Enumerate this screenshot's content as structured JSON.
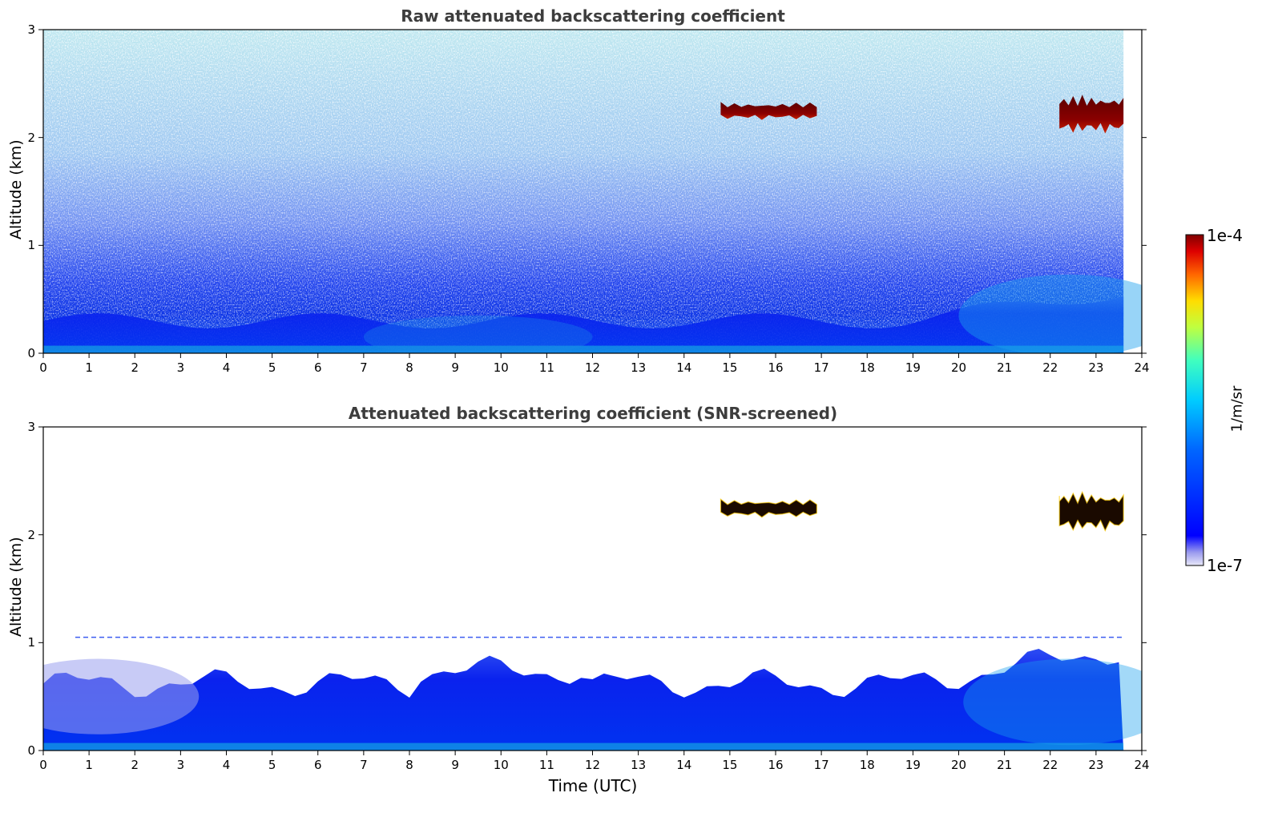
{
  "chart_data": [
    {
      "type": "heatmap",
      "title": "Raw attenuated backscattering coefficient",
      "xlabel": "",
      "ylabel": "Altitude (km)",
      "xlim": [
        0,
        24
      ],
      "ylim": [
        0,
        3
      ],
      "xticks": [
        "0",
        "1",
        "2",
        "3",
        "4",
        "5",
        "6",
        "7",
        "8",
        "9",
        "10",
        "11",
        "12",
        "13",
        "14",
        "15",
        "16",
        "17",
        "18",
        "19",
        "20",
        "21",
        "22",
        "23",
        "24"
      ],
      "yticks": [
        "0",
        "1",
        "2",
        "3"
      ],
      "data_end_time": 23.6,
      "features": [
        {
          "name": "boundary layer aerosol",
          "time_range": [
            0,
            23.6
          ],
          "altitude_top_km": 0.8
        },
        {
          "name": "cloud",
          "time_range": [
            14.8,
            16.9
          ],
          "altitude_range_km": [
            2.15,
            2.35
          ]
        },
        {
          "name": "cloud",
          "time_range": [
            22.2,
            23.6
          ],
          "altitude_range_km": [
            2.0,
            2.45
          ]
        }
      ]
    },
    {
      "type": "heatmap",
      "title": "Attenuated backscattering coefficient (SNR-screened)",
      "xlabel": "Time (UTC)",
      "ylabel": "Altitude (km)",
      "xlim": [
        0,
        24
      ],
      "ylim": [
        0,
        3
      ],
      "xticks": [
        "0",
        "1",
        "2",
        "3",
        "4",
        "5",
        "6",
        "7",
        "8",
        "9",
        "10",
        "11",
        "12",
        "13",
        "14",
        "15",
        "16",
        "17",
        "18",
        "19",
        "20",
        "21",
        "22",
        "23",
        "24"
      ],
      "yticks": [
        "0",
        "1",
        "2",
        "3"
      ],
      "data_end_time": 23.6,
      "features": [
        {
          "name": "boundary layer aerosol",
          "time_range": [
            0,
            23.6
          ],
          "altitude_top_km": 1.05
        },
        {
          "name": "cloud",
          "time_range": [
            14.8,
            16.9
          ],
          "altitude_range_km": [
            2.15,
            2.35
          ]
        },
        {
          "name": "cloud",
          "time_range": [
            22.2,
            23.6
          ],
          "altitude_range_km": [
            2.0,
            2.45
          ]
        }
      ]
    }
  ],
  "colorbar": {
    "max_label": "1e-4",
    "min_label": "1e-7",
    "unit_label": "1/m/sr",
    "scale": "log",
    "colormap": "jet"
  },
  "colors": {
    "title": "#3d3d3d",
    "cloud": "#8b0000"
  }
}
